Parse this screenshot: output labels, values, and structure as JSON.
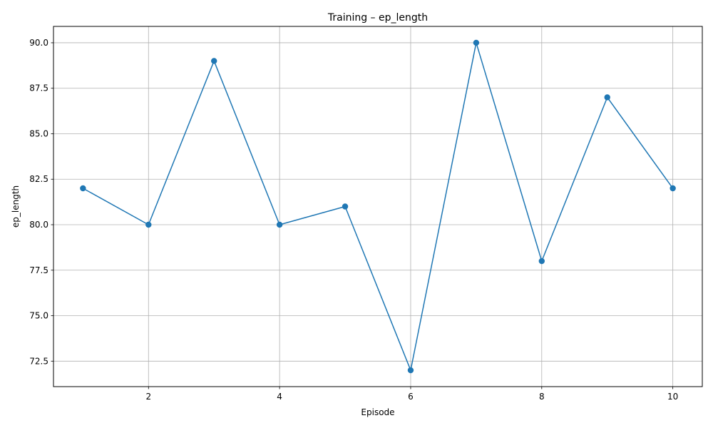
{
  "chart_data": {
    "type": "line",
    "title": "Training – ep_length",
    "xlabel": "Episode",
    "ylabel": "ep_length",
    "xlim": [
      0.55,
      10.45
    ],
    "ylim": [
      71.1,
      90.9
    ],
    "xticks": [
      2,
      4,
      6,
      8,
      10
    ],
    "xtick_labels": [
      "2",
      "4",
      "6",
      "8",
      "10"
    ],
    "yticks": [
      72.5,
      75.0,
      77.5,
      80.0,
      82.5,
      85.0,
      87.5,
      90.0
    ],
    "ytick_labels": [
      "72.5",
      "75.0",
      "77.5",
      "80.0",
      "82.5",
      "85.0",
      "87.5",
      "90.0"
    ],
    "grid": true,
    "legend": "none",
    "marker": "circle",
    "series": [
      {
        "color": "#1f77b4",
        "x": [
          1,
          2,
          3,
          4,
          5,
          6,
          7,
          8,
          9,
          10
        ],
        "y": [
          82,
          80,
          89,
          80,
          81,
          72,
          90,
          78,
          87,
          82
        ]
      }
    ]
  }
}
